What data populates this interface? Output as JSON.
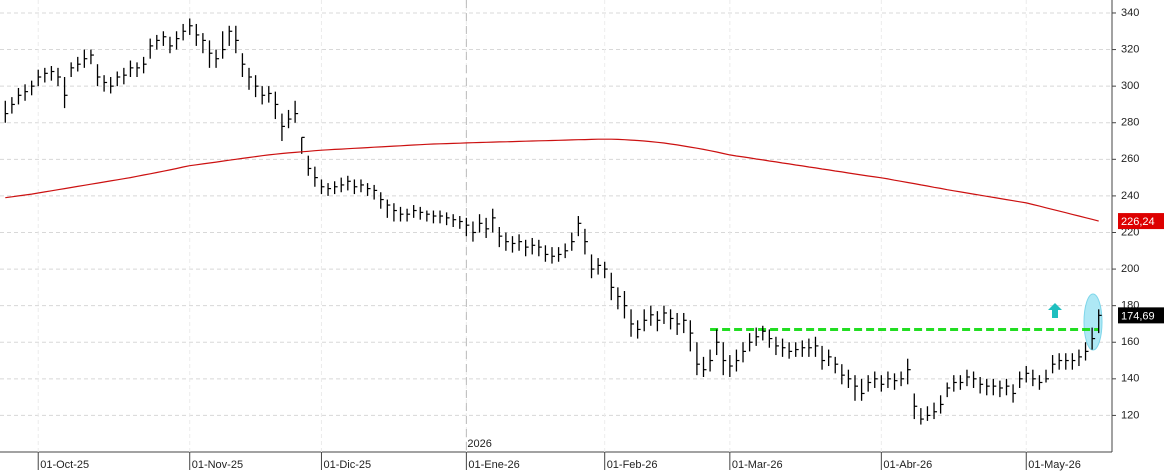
{
  "chart_data": {
    "type": "ohlc",
    "categories": [
      null,
      null,
      null,
      null,
      null,
      "01-Oct-25",
      null,
      null,
      null,
      null,
      null,
      null,
      null,
      null,
      null,
      null,
      null,
      null,
      null,
      null,
      null,
      null,
      null,
      null,
      null,
      null,
      null,
      null,
      "01-Nov-25",
      null,
      null,
      null,
      null,
      null,
      null,
      null,
      null,
      null,
      null,
      null,
      null,
      null,
      null,
      null,
      null,
      null,
      null,
      null,
      "01-Dic-25",
      null,
      null,
      null,
      null,
      null,
      null,
      null,
      null,
      null,
      null,
      null,
      null,
      null,
      null,
      null,
      null,
      null,
      null,
      null,
      null,
      null,
      "01-Ene-26",
      null,
      null,
      null,
      null,
      null,
      null,
      null,
      null,
      null,
      null,
      null,
      null,
      null,
      null,
      null,
      null,
      null,
      null,
      null,
      null,
      "01-Feb-26",
      null,
      null,
      null,
      null,
      null,
      null,
      null,
      null,
      null,
      null,
      null,
      null,
      null,
      null,
      null,
      null,
      null,
      null,
      "01-Mar-26",
      null,
      null,
      null,
      null,
      null,
      null,
      null,
      null,
      null,
      null,
      null,
      null,
      null,
      null,
      null,
      null,
      null,
      null,
      null,
      null,
      null,
      null,
      "01-Abr-26",
      null,
      null,
      null,
      null,
      null,
      null,
      null,
      null,
      null,
      null,
      null,
      null,
      null,
      null,
      null,
      null,
      null,
      null,
      null,
      null,
      null,
      "01-May-26",
      null,
      null,
      null,
      null,
      null,
      null,
      null,
      null,
      null,
      null,
      null
    ],
    "year_label": "2026",
    "year_start": 70,
    "series": [
      {
        "color": "#000000",
        "last_value_label": "174,69",
        "label_color": "#000000",
        "values": [
          285,
          290,
          295,
          297,
          300,
          305,
          307,
          308,
          305,
          295,
          310,
          312,
          315,
          317,
          305,
          302,
          300,
          305,
          306,
          310,
          310,
          312,
          322,
          325,
          327,
          322,
          326,
          330,
          333,
          328,
          325,
          318,
          315,
          320,
          330,
          325,
          312,
          305,
          300,
          295,
          296,
          290,
          278,
          282,
          285,
          272,
          255,
          250,
          245,
          244,
          245,
          246,
          248,
          245,
          246,
          244,
          243,
          238,
          235,
          232,
          230,
          230,
          232,
          231,
          230,
          229,
          229,
          228,
          227,
          226,
          224,
          220,
          225,
          222,
          228,
          218,
          215,
          214,
          215,
          212,
          213,
          212,
          208,
          207,
          208,
          210,
          215,
          225,
          215,
          200,
          202,
          200,
          190,
          185,
          180,
          170,
          167,
          172,
          175,
          172,
          176,
          173,
          170,
          172,
          165,
          148,
          145,
          150,
          160,
          150,
          147,
          150,
          155,
          160,
          163,
          166,
          162,
          158,
          157,
          155,
          156,
          157,
          157,
          158,
          150,
          152,
          148,
          142,
          140,
          136,
          132,
          138,
          140,
          137,
          140,
          139,
          140,
          145,
          125,
          118,
          120,
          122,
          126,
          135,
          138,
          138,
          141,
          140,
          137,
          136,
          136,
          135,
          136,
          132,
          140,
          143,
          140,
          138,
          140,
          148,
          150,
          150,
          150,
          152,
          155,
          162,
          174.69
        ],
        "high": [
          292,
          294,
          299,
          301,
          303,
          309,
          310,
          311,
          310,
          305,
          313,
          316,
          320,
          320,
          312,
          306,
          305,
          308,
          310,
          314,
          313,
          316,
          326,
          328,
          330,
          327,
          330,
          334,
          337,
          334,
          329,
          325,
          320,
          330,
          333,
          333,
          318,
          310,
          306,
          300,
          300,
          297,
          285,
          287,
          292,
          272,
          262,
          256,
          249,
          247,
          248,
          250,
          251,
          249,
          249,
          247,
          246,
          242,
          238,
          236,
          234,
          233,
          235,
          234,
          232,
          232,
          232,
          231,
          230,
          229,
          228,
          226,
          230,
          228,
          233,
          223,
          220,
          218,
          219,
          216,
          217,
          216,
          213,
          212,
          212,
          214,
          220,
          229,
          222,
          208,
          206,
          204,
          198,
          190,
          188,
          178,
          172,
          178,
          180,
          177,
          180,
          178,
          176,
          176,
          172,
          160,
          152,
          156,
          167,
          160,
          153,
          156,
          160,
          165,
          168,
          169,
          167,
          163,
          162,
          160,
          160,
          161,
          162,
          163,
          158,
          156,
          152,
          148,
          145,
          142,
          140,
          142,
          144,
          142,
          144,
          143,
          144,
          151,
          132,
          124,
          125,
          127,
          131,
          138,
          142,
          142,
          145,
          144,
          141,
          140,
          140,
          139,
          140,
          137,
          144,
          147,
          145,
          142,
          145,
          153,
          154,
          154,
          154,
          156,
          160,
          168,
          178
        ],
        "low": [
          280,
          285,
          290,
          292,
          295,
          300,
          302,
          303,
          300,
          288,
          305,
          308,
          310,
          312,
          300,
          297,
          296,
          300,
          301,
          305,
          305,
          307,
          315,
          320,
          322,
          318,
          320,
          325,
          328,
          322,
          318,
          310,
          310,
          315,
          322,
          318,
          305,
          298,
          294,
          290,
          291,
          282,
          270,
          277,
          280,
          263,
          251,
          245,
          241,
          240,
          241,
          242,
          243,
          241,
          242,
          240,
          238,
          233,
          228,
          226,
          226,
          226,
          228,
          227,
          226,
          225,
          225,
          224,
          223,
          222,
          218,
          215,
          220,
          217,
          220,
          212,
          210,
          209,
          210,
          207,
          208,
          207,
          204,
          203,
          204,
          206,
          210,
          218,
          208,
          195,
          197,
          195,
          183,
          178,
          173,
          163,
          162,
          166,
          169,
          166,
          170,
          167,
          164,
          165,
          155,
          142,
          141,
          144,
          153,
          142,
          141,
          144,
          149,
          155,
          158,
          161,
          157,
          153,
          152,
          151,
          152,
          152,
          152,
          152,
          145,
          147,
          143,
          137,
          135,
          128,
          128,
          133,
          135,
          133,
          135,
          134,
          136,
          137,
          118,
          115,
          117,
          118,
          121,
          130,
          133,
          134,
          136,
          135,
          132,
          131,
          131,
          130,
          131,
          127,
          135,
          138,
          136,
          134,
          138,
          143,
          145,
          145,
          145,
          147,
          150,
          156,
          165
        ]
      },
      {
        "type": "line",
        "color": "#cc1111",
        "last_value_label": "226,24",
        "label_color": "#dd0000",
        "values": [
          239,
          239.5,
          240,
          240.5,
          241,
          241.6,
          242.2,
          242.8,
          243.4,
          244,
          244.6,
          245.2,
          245.8,
          246.4,
          247,
          247.6,
          248.2,
          248.8,
          249.4,
          250,
          250.7,
          251.4,
          252.1,
          252.8,
          253.5,
          254.2,
          255,
          255.8,
          256.5,
          257,
          257.5,
          258,
          258.5,
          259,
          259.5,
          260,
          260.5,
          261,
          261.5,
          262,
          262.4,
          262.8,
          263.2,
          263.5,
          263.8,
          264.1,
          264.4,
          264.7,
          265,
          265.2,
          265.4,
          265.6,
          265.8,
          266,
          266.2,
          266.4,
          266.6,
          266.8,
          267,
          267.2,
          267.4,
          267.6,
          267.8,
          268,
          268.2,
          268.4,
          268.5,
          268.6,
          268.7,
          268.8,
          269,
          269.1,
          269.2,
          269.3,
          269.4,
          269.5,
          269.6,
          269.7,
          269.8,
          269.9,
          270,
          270.1,
          270.2,
          270.3,
          270.4,
          270.5,
          270.6,
          270.7,
          270.8,
          270.9,
          271,
          271,
          271,
          270.9,
          270.7,
          270.5,
          270.3,
          270,
          269.7,
          269.3,
          268.9,
          268.4,
          267.9,
          267.3,
          266.7,
          266.1,
          265.4,
          264.7,
          264,
          263.2,
          262.4,
          261.8,
          261.3,
          260.8,
          260.2,
          259.7,
          259.1,
          258.6,
          258,
          257.5,
          256.9,
          256.4,
          255.8,
          255.3,
          254.7,
          254.2,
          253.6,
          253.1,
          252.5,
          252,
          251.4,
          250.9,
          250.4,
          249.9,
          249.3,
          248.6,
          248,
          247.3,
          246.7,
          246,
          245.4,
          244.7,
          244.1,
          243.4,
          242.8,
          242.2,
          241.6,
          241,
          240.4,
          239.8,
          239.2,
          238.6,
          238,
          237.4,
          236.8,
          236.2,
          235.3,
          234.4,
          233.5,
          232.6,
          231.7,
          230.8,
          229.9,
          229,
          228.1,
          227.2,
          226.24
        ]
      }
    ],
    "level": {
      "value": 167,
      "start_index": 107,
      "color": "#22dd22"
    },
    "ylim": [
      100,
      346
    ],
    "yticks": [
      120,
      140,
      160,
      180,
      200,
      220,
      240,
      260,
      280,
      300,
      320,
      340
    ],
    "grid": true
  }
}
